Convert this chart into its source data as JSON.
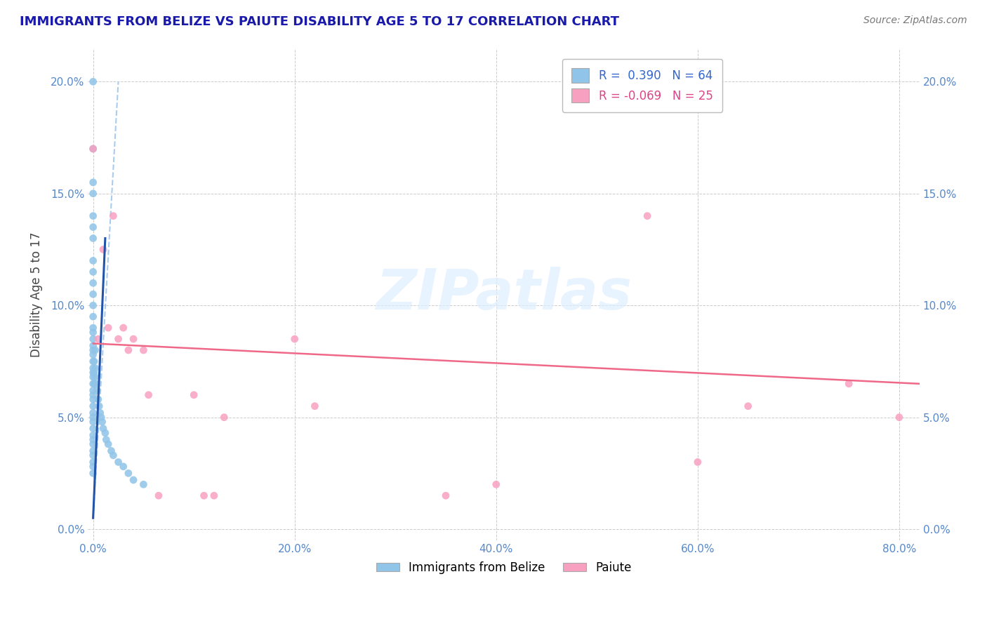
{
  "title": "IMMIGRANTS FROM BELIZE VS PAIUTE DISABILITY AGE 5 TO 17 CORRELATION CHART",
  "source": "Source: ZipAtlas.com",
  "xlim": [
    -0.005,
    0.82
  ],
  "ylim": [
    -0.005,
    0.215
  ],
  "ylabel": "Disability Age 5 to 17",
  "legend_r_entries": [
    {
      "label": "R =  0.390   N = 64",
      "color": "#6baed6"
    },
    {
      "label": "R = -0.069   N = 25",
      "color": "#f080a8"
    }
  ],
  "watermark_zip": "ZIP",
  "watermark_atlas": "atlas",
  "background_color": "#ffffff",
  "grid_color": "#cccccc",
  "grid_style": "--",
  "title_color": "#1a1aaa",
  "axis_tick_color": "#5588cc",
  "right_axis_tick_color": "#5588cc",
  "scatter_blue_color": "#90c4e8",
  "scatter_pink_color": "#f8a0c0",
  "line_blue_color": "#2255aa",
  "line_pink_color": "#f06888",
  "line_blue_dash_color": "#aaccee",
  "blue_scatter_x": [
    0.0,
    0.0,
    0.0,
    0.0,
    0.0,
    0.0,
    0.0,
    0.0,
    0.0,
    0.0,
    0.0,
    0.0,
    0.0,
    0.0,
    0.0,
    0.0,
    0.0,
    0.0,
    0.0,
    0.0,
    0.0,
    0.0,
    0.0,
    0.0,
    0.0,
    0.0,
    0.0,
    0.0,
    0.0,
    0.0,
    0.0,
    0.0,
    0.0,
    0.0,
    0.0,
    0.0,
    0.0,
    0.0,
    0.0,
    0.0,
    0.001,
    0.001,
    0.001,
    0.002,
    0.002,
    0.002,
    0.003,
    0.004,
    0.005,
    0.006,
    0.007,
    0.008,
    0.009,
    0.01,
    0.012,
    0.013,
    0.015,
    0.018,
    0.02,
    0.025,
    0.03,
    0.035,
    0.04,
    0.05
  ],
  "blue_scatter_y": [
    0.2,
    0.17,
    0.155,
    0.15,
    0.14,
    0.135,
    0.13,
    0.12,
    0.115,
    0.11,
    0.105,
    0.1,
    0.095,
    0.09,
    0.088,
    0.085,
    0.082,
    0.08,
    0.078,
    0.075,
    0.072,
    0.07,
    0.068,
    0.065,
    0.062,
    0.06,
    0.058,
    0.055,
    0.052,
    0.05,
    0.048,
    0.045,
    0.042,
    0.04,
    0.038,
    0.035,
    0.033,
    0.03,
    0.028,
    0.025,
    0.075,
    0.07,
    0.065,
    0.08,
    0.072,
    0.068,
    0.065,
    0.062,
    0.058,
    0.055,
    0.052,
    0.05,
    0.048,
    0.045,
    0.043,
    0.04,
    0.038,
    0.035,
    0.033,
    0.03,
    0.028,
    0.025,
    0.022,
    0.02
  ],
  "pink_scatter_x": [
    0.0,
    0.005,
    0.01,
    0.015,
    0.02,
    0.025,
    0.03,
    0.035,
    0.04,
    0.05,
    0.055,
    0.065,
    0.1,
    0.11,
    0.12,
    0.13,
    0.2,
    0.22,
    0.35,
    0.4,
    0.55,
    0.6,
    0.65,
    0.75,
    0.8
  ],
  "pink_scatter_y": [
    0.17,
    0.085,
    0.125,
    0.09,
    0.14,
    0.085,
    0.09,
    0.08,
    0.085,
    0.08,
    0.06,
    0.015,
    0.06,
    0.015,
    0.015,
    0.05,
    0.085,
    0.055,
    0.015,
    0.02,
    0.14,
    0.03,
    0.055,
    0.065,
    0.05
  ],
  "blue_solid_line_x": [
    0.0,
    0.012
  ],
  "blue_solid_line_y": [
    0.005,
    0.13
  ],
  "blue_dash_line_x": [
    0.0,
    0.025
  ],
  "blue_dash_line_y": [
    0.005,
    0.2
  ],
  "pink_line_start_x": 0.0,
  "pink_line_end_x": 0.82,
  "pink_line_start_y": 0.083,
  "pink_line_end_y": 0.065
}
